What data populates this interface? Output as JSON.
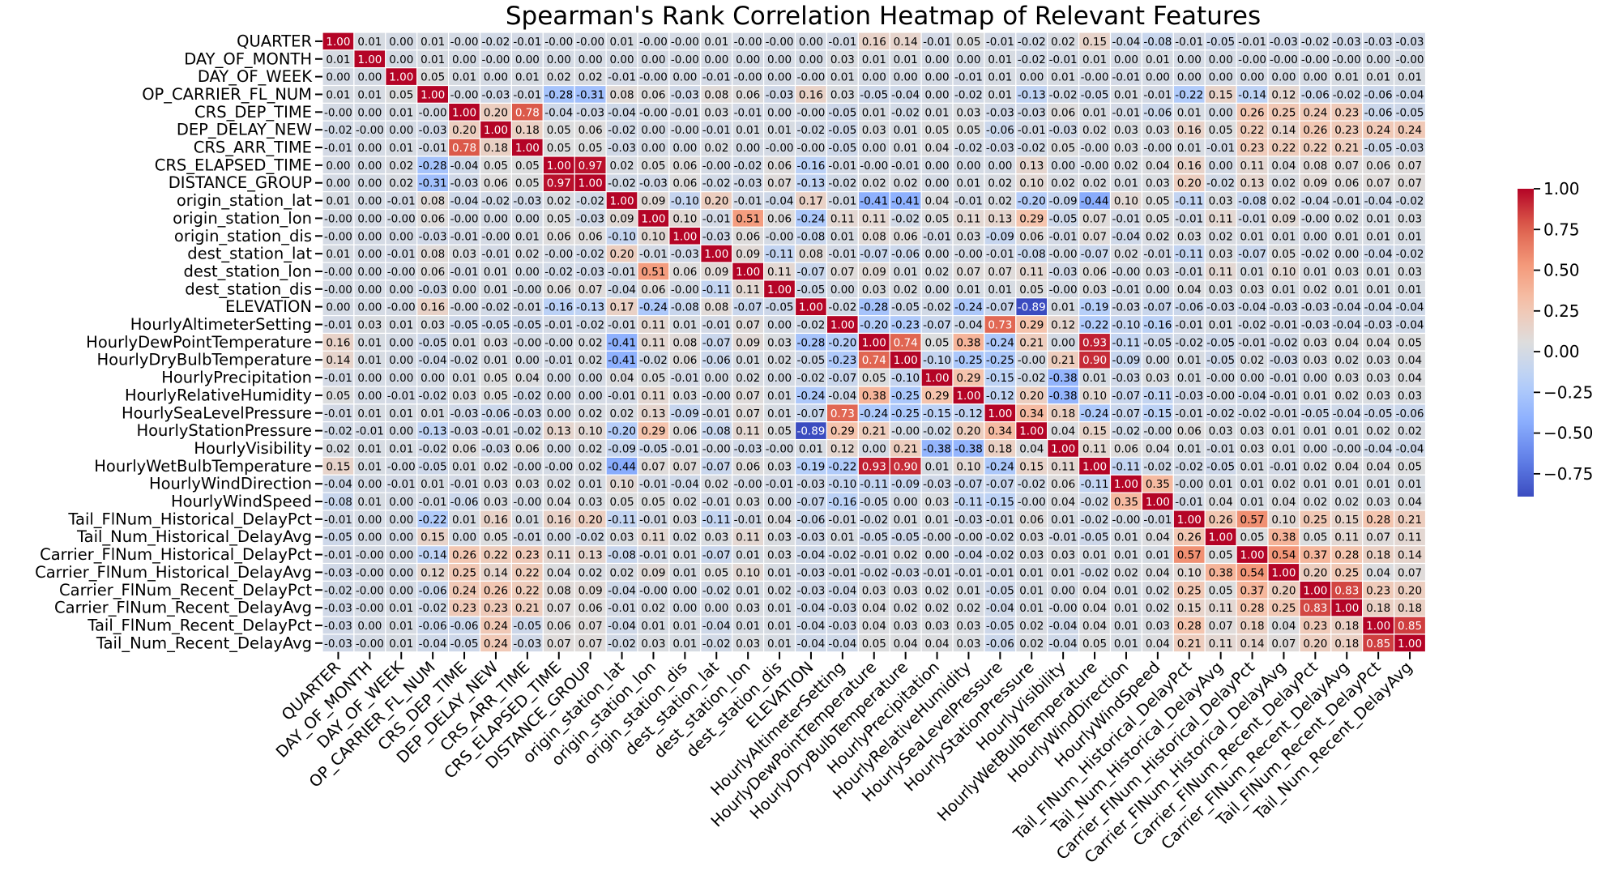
{
  "chart_data": {
    "type": "heatmap",
    "title": "Spearman's Rank Correlation Heatmap of Relevant Features",
    "labels": [
      "QUARTER",
      "DAY_OF_MONTH",
      "DAY_OF_WEEK",
      "OP_CARRIER_FL_NUM",
      "CRS_DEP_TIME",
      "DEP_DELAY_NEW",
      "CRS_ARR_TIME",
      "CRS_ELAPSED_TIME",
      "DISTANCE_GROUP",
      "origin_station_lat",
      "origin_station_lon",
      "origin_station_dis",
      "dest_station_lat",
      "dest_station_lon",
      "dest_station_dis",
      "ELEVATION",
      "HourlyAltimeterSetting",
      "HourlyDewPointTemperature",
      "HourlyDryBulbTemperature",
      "HourlyPrecipitation",
      "HourlyRelativeHumidity",
      "HourlySeaLevelPressure",
      "HourlyStationPressure",
      "HourlyVisibility",
      "HourlyWetBulbTemperature",
      "HourlyWindDirection",
      "HourlyWindSpeed",
      "Tail_FlNum_Historical_DelayPct",
      "Tail_Num_Historical_DelayAvg",
      "Carrier_FlNum_Historical_DelayPct",
      "Carrier_FlNum_Historical_DelayAvg",
      "Carrier_FlNum_Recent_DelayPct",
      "Carrier_FlNum_Recent_DelayAvg",
      "Tail_FlNum_Recent_DelayPct",
      "Tail_Num_Recent_DelayAvg"
    ],
    "matrix": [
      [
        1.0,
        0.01,
        0.0,
        0.01,
        -0.0,
        -0.02,
        -0.01,
        -0.0,
        -0.0,
        0.01,
        -0.0,
        -0.0,
        0.01,
        -0.0,
        -0.0,
        0.0,
        -0.01,
        0.16,
        0.14,
        -0.01,
        0.05,
        -0.01,
        -0.02,
        0.02,
        0.15,
        -0.04,
        -0.08,
        -0.01,
        -0.05,
        -0.01,
        -0.03,
        -0.02,
        -0.03,
        -0.03,
        -0.03
      ],
      [
        0.01,
        1.0,
        0.0,
        0.01,
        0.0,
        -0.0,
        0.0,
        0.0,
        0.0,
        0.0,
        0.0,
        -0.0,
        0.0,
        0.0,
        0.0,
        0.0,
        0.03,
        0.01,
        0.01,
        0.0,
        0.0,
        0.01,
        -0.02,
        -0.01,
        0.01,
        0.0,
        0.01,
        0.0,
        0.0,
        -0.0,
        -0.0,
        -0.0,
        -0.0,
        0.0,
        -0.0
      ],
      [
        0.0,
        0.0,
        1.0,
        0.05,
        0.01,
        0.0,
        0.01,
        0.02,
        0.02,
        -0.01,
        -0.0,
        0.0,
        -0.01,
        -0.0,
        0.0,
        -0.0,
        0.01,
        0.0,
        0.0,
        0.0,
        -0.01,
        0.01,
        0.0,
        0.01,
        -0.0,
        -0.01,
        0.0,
        0.0,
        0.0,
        0.0,
        0.0,
        0.0,
        0.01,
        0.01,
        0.01
      ],
      [
        0.01,
        0.01,
        0.05,
        1.0,
        -0.0,
        -0.03,
        -0.01,
        -0.28,
        -0.31,
        0.08,
        0.06,
        -0.03,
        0.08,
        0.06,
        -0.03,
        0.16,
        0.03,
        -0.05,
        -0.04,
        0.0,
        -0.02,
        0.01,
        -0.13,
        -0.02,
        -0.05,
        0.01,
        -0.01,
        -0.22,
        0.15,
        -0.14,
        0.12,
        -0.06,
        -0.02,
        -0.06,
        -0.04
      ],
      [
        -0.0,
        0.0,
        0.01,
        -0.0,
        1.0,
        0.2,
        0.78,
        -0.04,
        -0.03,
        -0.04,
        -0.0,
        -0.01,
        0.03,
        -0.01,
        0.0,
        -0.0,
        -0.05,
        0.01,
        -0.02,
        0.01,
        0.03,
        -0.03,
        -0.03,
        0.06,
        0.01,
        -0.01,
        -0.06,
        0.01,
        0.0,
        0.26,
        0.25,
        0.24,
        0.23,
        -0.06,
        -0.05
      ],
      [
        -0.02,
        -0.0,
        0.0,
        -0.03,
        0.2,
        1.0,
        0.18,
        0.05,
        0.06,
        -0.02,
        0.0,
        -0.0,
        -0.01,
        0.01,
        0.01,
        -0.02,
        -0.05,
        0.03,
        0.01,
        0.05,
        0.05,
        -0.06,
        -0.01,
        -0.03,
        0.02,
        0.03,
        0.03,
        0.16,
        0.05,
        0.22,
        0.14,
        0.26,
        0.23,
        0.24,
        0.24
      ],
      [
        -0.01,
        0.0,
        0.01,
        -0.01,
        0.78,
        0.18,
        1.0,
        0.05,
        0.05,
        -0.03,
        0.0,
        0.0,
        0.02,
        0.0,
        -0.0,
        -0.0,
        -0.05,
        0.0,
        0.01,
        0.04,
        -0.02,
        -0.03,
        -0.02,
        0.05,
        -0.0,
        0.03,
        -0.0,
        0.01,
        -0.01,
        0.23,
        0.22,
        0.22,
        0.21,
        -0.05,
        -0.03
      ],
      [
        0.0,
        0.0,
        0.02,
        -0.28,
        -0.04,
        0.05,
        0.05,
        1.0,
        0.97,
        0.02,
        0.05,
        0.06,
        -0.0,
        -0.02,
        0.06,
        -0.16,
        -0.01,
        -0.0,
        -0.01,
        0.0,
        0.0,
        0.0,
        0.13,
        0.0,
        -0.0,
        0.02,
        0.04,
        0.16,
        0.0,
        0.11,
        0.04,
        0.08,
        0.07,
        0.06,
        0.07
      ],
      [
        0.0,
        0.0,
        0.02,
        -0.31,
        -0.03,
        0.06,
        0.05,
        0.97,
        1.0,
        -0.02,
        -0.03,
        0.06,
        -0.02,
        -0.03,
        0.07,
        -0.13,
        -0.02,
        0.02,
        0.02,
        0.0,
        0.01,
        0.02,
        0.1,
        0.02,
        0.02,
        0.01,
        0.03,
        0.2,
        -0.02,
        0.13,
        0.02,
        0.09,
        0.06,
        0.07,
        0.07
      ],
      [
        0.01,
        0.0,
        -0.01,
        0.08,
        -0.04,
        -0.02,
        -0.03,
        0.02,
        -0.02,
        1.0,
        0.09,
        -0.1,
        0.2,
        -0.01,
        -0.04,
        0.17,
        -0.01,
        -0.41,
        -0.41,
        0.04,
        -0.01,
        0.02,
        -0.2,
        -0.09,
        -0.44,
        0.1,
        0.05,
        -0.11,
        0.03,
        -0.08,
        0.02,
        -0.04,
        -0.01,
        -0.04,
        -0.02
      ],
      [
        -0.0,
        0.0,
        -0.0,
        0.06,
        -0.0,
        0.0,
        0.0,
        0.05,
        -0.03,
        0.09,
        1.0,
        0.1,
        -0.01,
        0.51,
        0.06,
        -0.24,
        0.11,
        0.11,
        -0.02,
        0.05,
        0.11,
        0.13,
        0.29,
        -0.05,
        0.07,
        -0.01,
        0.05,
        -0.01,
        0.11,
        -0.01,
        0.09,
        -0.0,
        0.02,
        0.01,
        0.03
      ],
      [
        -0.0,
        0.0,
        0.0,
        -0.03,
        -0.01,
        -0.0,
        0.01,
        0.06,
        0.06,
        -0.1,
        0.1,
        1.0,
        -0.03,
        0.06,
        -0.0,
        -0.08,
        0.01,
        0.08,
        0.06,
        -0.01,
        0.03,
        -0.09,
        0.06,
        -0.01,
        0.07,
        -0.04,
        0.02,
        0.03,
        0.02,
        0.01,
        0.01,
        0.0,
        0.01,
        0.01,
        0.01
      ],
      [
        0.01,
        0.0,
        -0.01,
        0.08,
        0.03,
        -0.01,
        0.02,
        -0.0,
        -0.02,
        0.2,
        -0.01,
        -0.03,
        1.0,
        0.09,
        -0.11,
        0.08,
        -0.01,
        -0.07,
        -0.06,
        0.0,
        -0.0,
        -0.01,
        -0.08,
        -0.0,
        -0.07,
        0.02,
        -0.01,
        -0.11,
        0.03,
        -0.07,
        0.05,
        -0.02,
        0.0,
        -0.04,
        -0.02
      ],
      [
        -0.0,
        0.0,
        -0.0,
        0.06,
        -0.01,
        0.01,
        0.0,
        -0.02,
        -0.03,
        -0.01,
        0.51,
        0.06,
        0.09,
        1.0,
        0.11,
        -0.07,
        0.07,
        0.09,
        0.01,
        0.02,
        0.07,
        0.07,
        0.11,
        -0.03,
        0.06,
        -0.0,
        0.03,
        -0.01,
        0.11,
        0.01,
        0.1,
        0.01,
        0.03,
        0.01,
        0.03
      ],
      [
        -0.0,
        0.0,
        0.0,
        -0.03,
        0.0,
        0.01,
        -0.0,
        0.06,
        0.07,
        -0.04,
        0.06,
        -0.0,
        -0.11,
        0.11,
        1.0,
        -0.05,
        0.0,
        0.03,
        0.02,
        0.0,
        0.01,
        0.01,
        0.05,
        -0.0,
        0.03,
        -0.01,
        0.0,
        0.04,
        0.03,
        0.03,
        0.01,
        0.02,
        0.01,
        0.01,
        0.01
      ],
      [
        0.0,
        0.0,
        -0.0,
        0.16,
        -0.0,
        -0.02,
        -0.01,
        -0.16,
        -0.13,
        0.17,
        -0.24,
        -0.08,
        0.08,
        -0.07,
        -0.05,
        1.0,
        -0.02,
        -0.28,
        -0.05,
        -0.02,
        -0.24,
        -0.07,
        -0.89,
        0.01,
        -0.19,
        -0.03,
        -0.07,
        -0.06,
        -0.03,
        -0.04,
        -0.03,
        -0.03,
        -0.04,
        -0.04,
        -0.04
      ],
      [
        -0.01,
        0.03,
        0.01,
        0.03,
        -0.05,
        -0.05,
        -0.05,
        -0.01,
        -0.02,
        -0.01,
        0.11,
        0.01,
        -0.01,
        0.07,
        0.0,
        -0.02,
        1.0,
        -0.2,
        -0.23,
        -0.07,
        -0.04,
        0.73,
        0.29,
        0.12,
        -0.22,
        -0.1,
        -0.16,
        -0.01,
        0.01,
        -0.02,
        -0.01,
        -0.03,
        -0.04,
        -0.03,
        -0.04
      ],
      [
        0.16,
        0.01,
        0.0,
        -0.05,
        0.01,
        0.03,
        -0.0,
        -0.0,
        0.02,
        -0.41,
        0.11,
        0.08,
        -0.07,
        0.09,
        0.03,
        -0.28,
        -0.2,
        1.0,
        0.74,
        0.05,
        0.38,
        -0.24,
        0.21,
        0.0,
        0.93,
        -0.11,
        -0.05,
        -0.02,
        -0.05,
        -0.01,
        -0.02,
        0.03,
        0.04,
        0.04,
        0.05
      ],
      [
        0.14,
        0.01,
        0.0,
        -0.04,
        -0.02,
        0.01,
        0.0,
        -0.01,
        0.02,
        -0.41,
        -0.02,
        0.06,
        -0.06,
        0.01,
        0.02,
        -0.05,
        -0.23,
        0.74,
        1.0,
        -0.1,
        -0.25,
        -0.25,
        -0.0,
        0.21,
        0.9,
        -0.09,
        0.0,
        0.01,
        -0.05,
        0.02,
        -0.03,
        0.03,
        0.02,
        0.03,
        0.04
      ],
      [
        -0.01,
        0.0,
        0.0,
        0.0,
        0.01,
        0.05,
        0.04,
        0.0,
        0.0,
        0.04,
        0.05,
        -0.01,
        0.0,
        0.02,
        0.0,
        -0.02,
        -0.07,
        0.05,
        -0.1,
        1.0,
        0.29,
        -0.15,
        -0.02,
        -0.38,
        0.01,
        -0.03,
        0.03,
        0.01,
        -0.0,
        0.0,
        -0.01,
        0.0,
        0.03,
        0.03,
        0.04
      ],
      [
        0.05,
        0.0,
        -0.01,
        -0.02,
        0.03,
        0.05,
        -0.02,
        0.0,
        0.0,
        -0.01,
        0.11,
        0.03,
        -0.0,
        0.07,
        0.01,
        -0.24,
        -0.04,
        0.38,
        -0.25,
        0.29,
        1.0,
        -0.12,
        0.2,
        -0.38,
        0.1,
        -0.07,
        -0.11,
        -0.03,
        -0.0,
        -0.04,
        -0.01,
        0.01,
        0.02,
        0.03,
        0.03
      ],
      [
        -0.01,
        0.01,
        0.01,
        0.01,
        -0.03,
        -0.06,
        -0.03,
        0.0,
        0.02,
        0.02,
        0.13,
        -0.09,
        -0.01,
        0.07,
        0.01,
        -0.07,
        0.73,
        -0.24,
        -0.25,
        -0.15,
        -0.12,
        1.0,
        0.34,
        0.18,
        -0.24,
        -0.07,
        -0.15,
        -0.01,
        -0.02,
        -0.02,
        -0.01,
        -0.05,
        -0.04,
        -0.05,
        -0.06
      ],
      [
        -0.02,
        -0.01,
        0.0,
        -0.13,
        -0.03,
        -0.01,
        -0.02,
        0.13,
        0.1,
        -0.2,
        0.29,
        0.06,
        -0.08,
        0.11,
        0.05,
        -0.89,
        0.29,
        0.21,
        -0.0,
        -0.02,
        0.2,
        0.34,
        1.0,
        0.04,
        0.15,
        -0.02,
        -0.0,
        0.06,
        0.03,
        0.03,
        0.01,
        0.01,
        0.01,
        0.02,
        0.02
      ],
      [
        0.02,
        0.01,
        0.01,
        -0.02,
        0.06,
        -0.03,
        0.06,
        0.0,
        0.02,
        -0.09,
        -0.05,
        -0.01,
        -0.0,
        -0.03,
        -0.0,
        0.01,
        0.12,
        0.0,
        0.21,
        -0.38,
        -0.38,
        0.18,
        0.04,
        1.0,
        0.11,
        0.06,
        0.04,
        0.01,
        -0.01,
        0.03,
        0.01,
        0.0,
        -0.0,
        -0.04,
        -0.04
      ],
      [
        0.15,
        0.01,
        -0.0,
        -0.05,
        0.01,
        0.02,
        -0.0,
        -0.0,
        0.02,
        -0.44,
        0.07,
        0.07,
        -0.07,
        0.06,
        0.03,
        -0.19,
        -0.22,
        0.93,
        0.9,
        0.01,
        0.1,
        -0.24,
        0.15,
        0.11,
        1.0,
        -0.11,
        -0.02,
        -0.02,
        -0.05,
        0.01,
        -0.01,
        0.02,
        0.04,
        0.04,
        0.05
      ],
      [
        -0.04,
        0.0,
        -0.01,
        0.01,
        -0.01,
        0.03,
        0.03,
        0.02,
        0.01,
        0.1,
        -0.01,
        -0.04,
        0.02,
        -0.0,
        -0.01,
        -0.03,
        -0.1,
        -0.11,
        -0.09,
        -0.03,
        -0.07,
        -0.07,
        -0.02,
        0.06,
        -0.11,
        1.0,
        0.35,
        -0.0,
        0.01,
        0.01,
        0.02,
        0.01,
        0.01,
        0.01,
        0.01
      ],
      [
        -0.08,
        0.01,
        0.0,
        -0.01,
        -0.06,
        0.03,
        -0.0,
        0.04,
        0.03,
        0.05,
        0.05,
        0.02,
        -0.01,
        0.03,
        0.0,
        -0.07,
        -0.16,
        -0.05,
        0.0,
        0.03,
        -0.11,
        -0.15,
        -0.0,
        0.04,
        -0.02,
        0.35,
        1.0,
        -0.01,
        0.04,
        0.01,
        0.04,
        0.02,
        0.02,
        0.03,
        0.04
      ],
      [
        -0.01,
        0.0,
        0.0,
        -0.22,
        0.01,
        0.16,
        0.01,
        0.16,
        0.2,
        -0.11,
        -0.01,
        0.03,
        -0.11,
        -0.01,
        0.04,
        -0.06,
        -0.01,
        -0.02,
        0.01,
        0.01,
        -0.03,
        -0.01,
        0.06,
        0.01,
        -0.02,
        -0.0,
        -0.01,
        1.0,
        0.26,
        0.57,
        0.1,
        0.25,
        0.15,
        0.28,
        0.21
      ],
      [
        -0.05,
        0.0,
        0.0,
        0.15,
        0.0,
        0.05,
        -0.01,
        0.0,
        -0.02,
        0.03,
        0.11,
        0.02,
        0.03,
        0.11,
        0.03,
        -0.03,
        0.01,
        -0.05,
        -0.05,
        -0.0,
        -0.0,
        -0.02,
        0.03,
        -0.01,
        -0.05,
        0.01,
        0.04,
        0.26,
        1.0,
        0.05,
        0.38,
        0.05,
        0.11,
        0.07,
        0.11
      ],
      [
        -0.01,
        -0.0,
        0.0,
        -0.14,
        0.26,
        0.22,
        0.23,
        0.11,
        0.13,
        -0.08,
        -0.01,
        0.01,
        -0.07,
        0.01,
        0.03,
        -0.04,
        -0.02,
        -0.01,
        0.02,
        0.0,
        -0.04,
        -0.02,
        0.03,
        0.03,
        0.01,
        0.01,
        0.01,
        0.57,
        0.05,
        1.0,
        0.54,
        0.37,
        0.28,
        0.18,
        0.14
      ],
      [
        -0.03,
        -0.0,
        0.0,
        0.12,
        0.25,
        0.14,
        0.22,
        0.04,
        0.02,
        0.02,
        0.09,
        0.01,
        0.05,
        0.1,
        0.01,
        -0.03,
        -0.01,
        -0.02,
        -0.03,
        -0.01,
        -0.01,
        -0.01,
        0.01,
        0.01,
        -0.02,
        0.02,
        0.04,
        0.1,
        0.38,
        0.54,
        1.0,
        0.2,
        0.25,
        0.04,
        0.07
      ],
      [
        -0.02,
        -0.0,
        0.0,
        -0.06,
        0.24,
        0.26,
        0.22,
        0.08,
        0.09,
        -0.04,
        -0.0,
        0.0,
        -0.02,
        0.01,
        0.02,
        -0.03,
        -0.04,
        0.03,
        0.03,
        0.02,
        0.01,
        -0.05,
        0.01,
        0.0,
        0.04,
        0.01,
        0.02,
        0.25,
        0.05,
        0.37,
        0.2,
        1.0,
        0.83,
        0.23,
        0.2
      ],
      [
        -0.03,
        -0.0,
        0.01,
        -0.02,
        0.23,
        0.23,
        0.21,
        0.07,
        0.06,
        -0.01,
        0.02,
        0.0,
        0.0,
        0.03,
        0.01,
        -0.04,
        -0.03,
        0.04,
        0.02,
        0.02,
        0.02,
        -0.04,
        0.01,
        -0.0,
        0.04,
        0.01,
        0.02,
        0.15,
        0.11,
        0.28,
        0.25,
        0.83,
        1.0,
        0.18,
        0.18
      ],
      [
        -0.03,
        0.0,
        0.01,
        -0.06,
        -0.06,
        0.24,
        -0.05,
        0.06,
        0.07,
        -0.04,
        0.01,
        0.01,
        -0.04,
        0.01,
        0.01,
        -0.04,
        -0.03,
        0.04,
        0.03,
        0.03,
        0.03,
        -0.05,
        0.02,
        -0.04,
        0.04,
        0.01,
        0.03,
        0.28,
        0.07,
        0.18,
        0.04,
        0.23,
        0.18,
        1.0,
        0.85
      ],
      [
        -0.03,
        -0.0,
        0.01,
        -0.04,
        -0.05,
        0.24,
        -0.03,
        0.07,
        0.07,
        -0.02,
        0.03,
        0.01,
        -0.02,
        0.03,
        0.01,
        -0.04,
        -0.04,
        0.05,
        0.04,
        0.04,
        0.03,
        -0.06,
        0.02,
        -0.04,
        0.05,
        0.01,
        0.04,
        0.21,
        0.11,
        0.14,
        0.07,
        0.2,
        0.18,
        0.85,
        1.0
      ]
    ],
    "value_format": "2 decimals",
    "vmin": -0.89,
    "vmax": 1.0,
    "colormap": "coolwarm",
    "colorbar": {
      "ticks": [
        "1.00",
        "0.75",
        "0.50",
        "0.25",
        "0.00",
        "−0.25",
        "−0.50",
        "−0.75"
      ],
      "tick_values": [
        1.0,
        0.75,
        0.5,
        0.25,
        0.0,
        -0.25,
        -0.5,
        -0.75
      ]
    },
    "gridlines": "white",
    "legend": "colorbar-right"
  }
}
